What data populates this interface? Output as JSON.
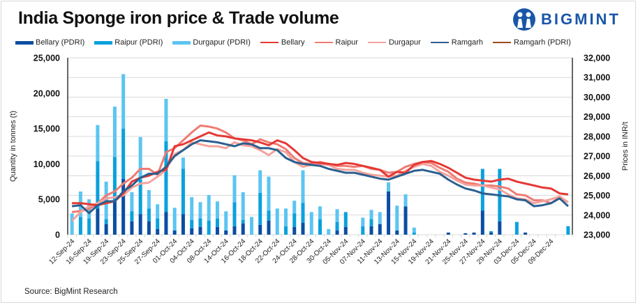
{
  "header": {
    "title": "India Sponge iron price & Trade volume",
    "brand": "BIGMINT"
  },
  "footer": {
    "source": "Source: BigMint Research"
  },
  "legend": [
    {
      "label": "Bellary (PDRI)",
      "kind": "bar",
      "color": "#0b4ea2"
    },
    {
      "label": "Raipur (PDRI)",
      "kind": "bar",
      "color": "#0aa1dd"
    },
    {
      "label": "Durgapur (PDRI)",
      "kind": "bar",
      "color": "#5bc5f2"
    },
    {
      "label": "Bellary",
      "kind": "line",
      "color": "#e53935"
    },
    {
      "label": "Raipur",
      "kind": "line",
      "color": "#ef7b73"
    },
    {
      "label": "Durgapur",
      "kind": "line",
      "color": "#f3a39c"
    },
    {
      "label": "Ramgarh",
      "kind": "line",
      "color": "#2a5f8f"
    },
    {
      "label": "Ramgarh (PDRI)",
      "kind": "line",
      "color": "#9c4a1a"
    }
  ],
  "chart_data": {
    "type": "bar+line",
    "title": "India Sponge iron price & Trade volume",
    "ylabel": "Quantity in tonnes (t)",
    "y2label": "Prices in INR/t",
    "ylim": [
      0,
      25000
    ],
    "y2lim": [
      23000,
      32000
    ],
    "yticks": [
      "0",
      "5,000",
      "10,000",
      "15,000",
      "20,000",
      "25,000"
    ],
    "y2ticks": [
      "23,000",
      "24,000",
      "25,000",
      "26,000",
      "27,000",
      "28,000",
      "29,000",
      "30,000",
      "31,000",
      "32,000"
    ],
    "grid": true,
    "legend_position": "top",
    "x_labels_shown": [
      "12-Sep-24",
      "16-Sep-24",
      "19-Sep-24",
      "23-Sep-24",
      "25-Sep-24",
      "27-Sep-24",
      "01-Oct-24",
      "04-Oct-24",
      "08-Oct-24",
      "14-Oct-24",
      "16-Oct-24",
      "18-Oct-24",
      "22-Oct-24",
      "24-Oct-24",
      "28-Oct-24",
      "30-Oct-24",
      "05-Nov-24",
      "07-Nov-24",
      "11-Nov-24",
      "13-Nov-24",
      "15-Nov-24",
      "19-Nov-24",
      "21-Nov-24",
      "25-Nov-24",
      "27-Nov-24",
      "29-Nov-24",
      "03-Dec-24",
      "05-Dec-24",
      "09-Dec-24"
    ],
    "n_categories": 59,
    "series_bars": [
      {
        "name": "Bellary (PDRI)",
        "values": [
          0,
          0,
          0,
          3700,
          1500,
          4700,
          7900,
          1900,
          2900,
          1900,
          800,
          3200,
          600,
          2900,
          900,
          1100,
          0,
          1100,
          600,
          1200,
          1600,
          0,
          1400,
          2000,
          0,
          0,
          1100,
          1700,
          0,
          0,
          0,
          600,
          1100,
          0,
          0,
          1200,
          1500,
          6100,
          600,
          4000,
          0,
          0,
          0,
          0,
          300,
          0,
          200,
          300,
          3400,
          300,
          1900,
          0,
          0,
          300,
          0,
          0,
          0,
          0,
          0
        ]
      },
      {
        "name": "Raipur (PDRI)",
        "values": [
          0,
          2500,
          2300,
          6700,
          700,
          6300,
          7100,
          1400,
          4900,
          1800,
          1500,
          10000,
          0,
          6400,
          1200,
          1200,
          2000,
          1200,
          0,
          3400,
          500,
          0,
          4500,
          1400,
          0,
          1200,
          1900,
          2800,
          0,
          2200,
          0,
          1200,
          2100,
          0,
          1200,
          1000,
          0,
          0,
          0,
          0,
          300,
          0,
          0,
          0,
          0,
          0,
          0,
          0,
          5900,
          200,
          7400,
          0,
          1800,
          0,
          0,
          0,
          0,
          0,
          1200
        ]
      },
      {
        "name": "Durgapur (PDRI)",
        "values": [
          3000,
          3600,
          2700,
          5100,
          5300,
          7100,
          7700,
          2700,
          6000,
          2600,
          2000,
          6000,
          3200,
          1600,
          3200,
          2300,
          3600,
          2400,
          2700,
          3800,
          3900,
          2500,
          3200,
          4800,
          3700,
          2500,
          1800,
          4600,
          3200,
          1800,
          800,
          1800,
          0,
          0,
          1200,
          1300,
          1700,
          1300,
          3500,
          1700,
          700,
          0,
          0,
          0,
          0,
          0,
          0,
          0,
          0,
          0,
          0,
          0,
          0,
          0,
          0,
          0,
          0,
          0,
          0
        ]
      }
    ],
    "series_lines": [
      {
        "name": "Bellary",
        "values": [
          24600,
          24600,
          24550,
          24500,
          24600,
          24700,
          25100,
          25700,
          25900,
          26000,
          26200,
          26300,
          27500,
          27600,
          27800,
          28000,
          28200,
          28050,
          28000,
          27900,
          27850,
          27800,
          27700,
          27550,
          27800,
          27650,
          27300,
          26900,
          26700,
          26650,
          26600,
          26550,
          26650,
          26600,
          26500,
          26400,
          26300,
          25950,
          26200,
          26150,
          26550,
          26700,
          26750,
          26600,
          26400,
          26150,
          25900,
          25800,
          25750,
          25700,
          25800,
          25850,
          25700,
          25600,
          25500,
          25400,
          25350,
          25100,
          25050
        ]
      },
      {
        "name": "Raipur",
        "values": [
          24150,
          24200,
          24300,
          24600,
          25000,
          25200,
          25600,
          25900,
          26350,
          26350,
          26050,
          27200,
          27400,
          27800,
          28200,
          28550,
          28500,
          28400,
          28200,
          27900,
          27800,
          27600,
          27850,
          27700,
          27600,
          27350,
          26900,
          26650,
          26600,
          26700,
          26600,
          26500,
          26500,
          26450,
          26500,
          26350,
          26300,
          26150,
          26200,
          26450,
          26600,
          26700,
          26650,
          26400,
          26200,
          25850,
          25650,
          25600,
          25500,
          25500,
          25450,
          25350,
          25050,
          25000,
          24750,
          24750,
          24600,
          24900,
          24650
        ]
      },
      {
        "name": "Durgapur",
        "values": [
          23700,
          24150,
          24450,
          24600,
          24850,
          24900,
          25000,
          25400,
          25600,
          25650,
          25950,
          26300,
          27100,
          27300,
          27700,
          27600,
          27500,
          27500,
          27400,
          27700,
          27550,
          27500,
          27300,
          27050,
          27350,
          27200,
          26700,
          26450,
          26550,
          26600,
          26550,
          26350,
          26300,
          26300,
          26150,
          26050,
          26000,
          25950,
          26000,
          26250,
          26450,
          26600,
          26500,
          26200,
          26000,
          25750,
          25550,
          25500,
          25500,
          25400,
          25300,
          25050,
          24850,
          24800,
          24600,
          24700,
          24800,
          24950,
          24650
        ]
      },
      {
        "name": "Ramgarh",
        "values": [
          24450,
          24500,
          24100,
          24500,
          24700,
          24700,
          25200,
          25500,
          25900,
          26100,
          26100,
          26450,
          27000,
          27300,
          27600,
          27800,
          27750,
          27700,
          27600,
          27500,
          27650,
          27600,
          27400,
          27400,
          27300,
          26900,
          26700,
          26600,
          26550,
          26500,
          26350,
          26250,
          26150,
          26150,
          26050,
          25950,
          25850,
          25800,
          25950,
          26100,
          26250,
          26300,
          26200,
          26100,
          25800,
          25550,
          25350,
          25250,
          25100,
          25050,
          25000,
          24950,
          24800,
          24750,
          24450,
          24500,
          24600,
          24850,
          24450
        ]
      }
    ]
  }
}
